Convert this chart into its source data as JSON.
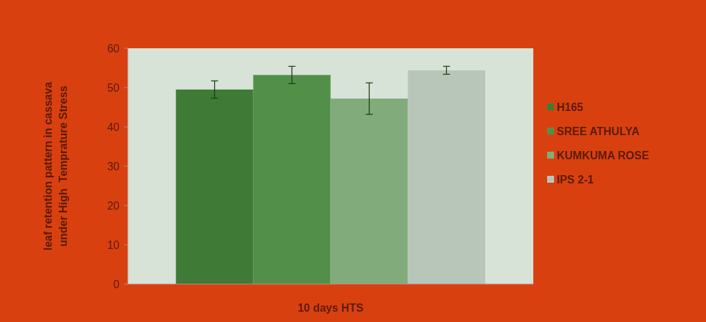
{
  "chart_data": {
    "type": "bar",
    "ylabel": "leaf retention pattern in cassava under High  Temprature Stress",
    "xlabel": "10 days HTS",
    "categories": [
      null
    ],
    "ylim": [
      0,
      60
    ],
    "yticks": [
      0,
      10,
      20,
      30,
      40,
      50,
      60
    ],
    "legend": "right",
    "grid": false,
    "series": [
      {
        "name": "H165",
        "color": "#3f7a36",
        "values": [
          49.5
        ],
        "errors": [
          2.2
        ]
      },
      {
        "name": "SREE ATHULYA",
        "color": "#52904a",
        "values": [
          53.2
        ],
        "errors": [
          2.2
        ]
      },
      {
        "name": "KUMKUMA ROSE",
        "color": "#82ab7c",
        "values": [
          47.2
        ],
        "errors": [
          4
        ]
      },
      {
        "name": "IPS 2-1",
        "color": "#b7c6b8",
        "values": [
          54.4
        ],
        "errors": [
          1
        ]
      }
    ]
  }
}
